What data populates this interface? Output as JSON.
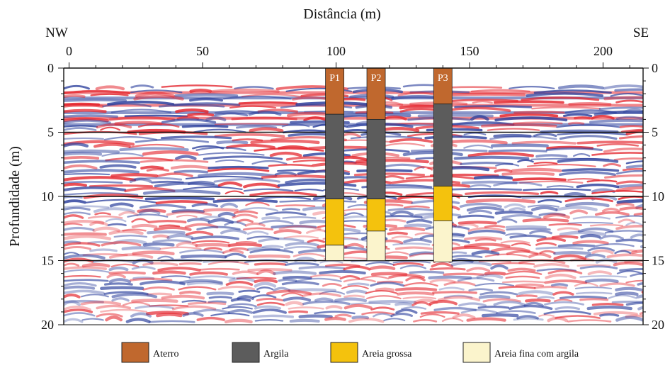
{
  "chart_data": {
    "type": "gpr-radargram-with-borehole-logs",
    "title": "Distância (m)",
    "xlabel": "Distância (m)",
    "ylabel": "Profundidade (m)",
    "left_label": "NW",
    "right_label": "SE",
    "xlim": [
      -2,
      215
    ],
    "ylim": [
      0,
      20
    ],
    "x_ticks": [
      0,
      50,
      100,
      150,
      200
    ],
    "x_tick_labels": [
      "0",
      "50",
      "100",
      "150",
      "200"
    ],
    "y_ticks": [
      0,
      5,
      10,
      15,
      20
    ],
    "y_tick_labels": [
      "0",
      "5",
      "10",
      "15",
      "20"
    ],
    "reference_lines": [
      5,
      10,
      15
    ],
    "colors": {
      "positive": "#e3232b",
      "negative": "#2b3f9c",
      "reference_line": "#111111"
    },
    "layers": [
      {
        "name": "Aterro",
        "color": "#c0682e"
      },
      {
        "name": "Argila",
        "color": "#5c5c5c"
      },
      {
        "name": "Areia grossa",
        "color": "#f4c20d"
      },
      {
        "name": "Areia fina com argila",
        "color": "#fbf4cc"
      }
    ],
    "boreholes": [
      {
        "name": "P1",
        "x": 99.5,
        "intervals": [
          {
            "layer": "Aterro",
            "top": 0,
            "bottom": 3.6
          },
          {
            "layer": "Argila",
            "top": 3.6,
            "bottom": 10.2
          },
          {
            "layer": "Areia grossa",
            "top": 10.2,
            "bottom": 13.8
          },
          {
            "layer": "Areia fina com argila",
            "top": 13.8,
            "bottom": 15.0
          }
        ]
      },
      {
        "name": "P2",
        "x": 115.0,
        "intervals": [
          {
            "layer": "Aterro",
            "top": 0,
            "bottom": 4.0
          },
          {
            "layer": "Argila",
            "top": 4.0,
            "bottom": 10.2
          },
          {
            "layer": "Areia grossa",
            "top": 10.2,
            "bottom": 12.7
          },
          {
            "layer": "Areia fina com argila",
            "top": 12.7,
            "bottom": 15.0
          }
        ]
      },
      {
        "name": "P3",
        "x": 140.0,
        "intervals": [
          {
            "layer": "Aterro",
            "top": 0,
            "bottom": 2.8
          },
          {
            "layer": "Argila",
            "top": 2.8,
            "bottom": 9.2
          },
          {
            "layer": "Areia grossa",
            "top": 9.2,
            "bottom": 11.9
          },
          {
            "layer": "Areia fina com argila",
            "top": 11.9,
            "bottom": 15.1
          }
        ]
      }
    ]
  }
}
